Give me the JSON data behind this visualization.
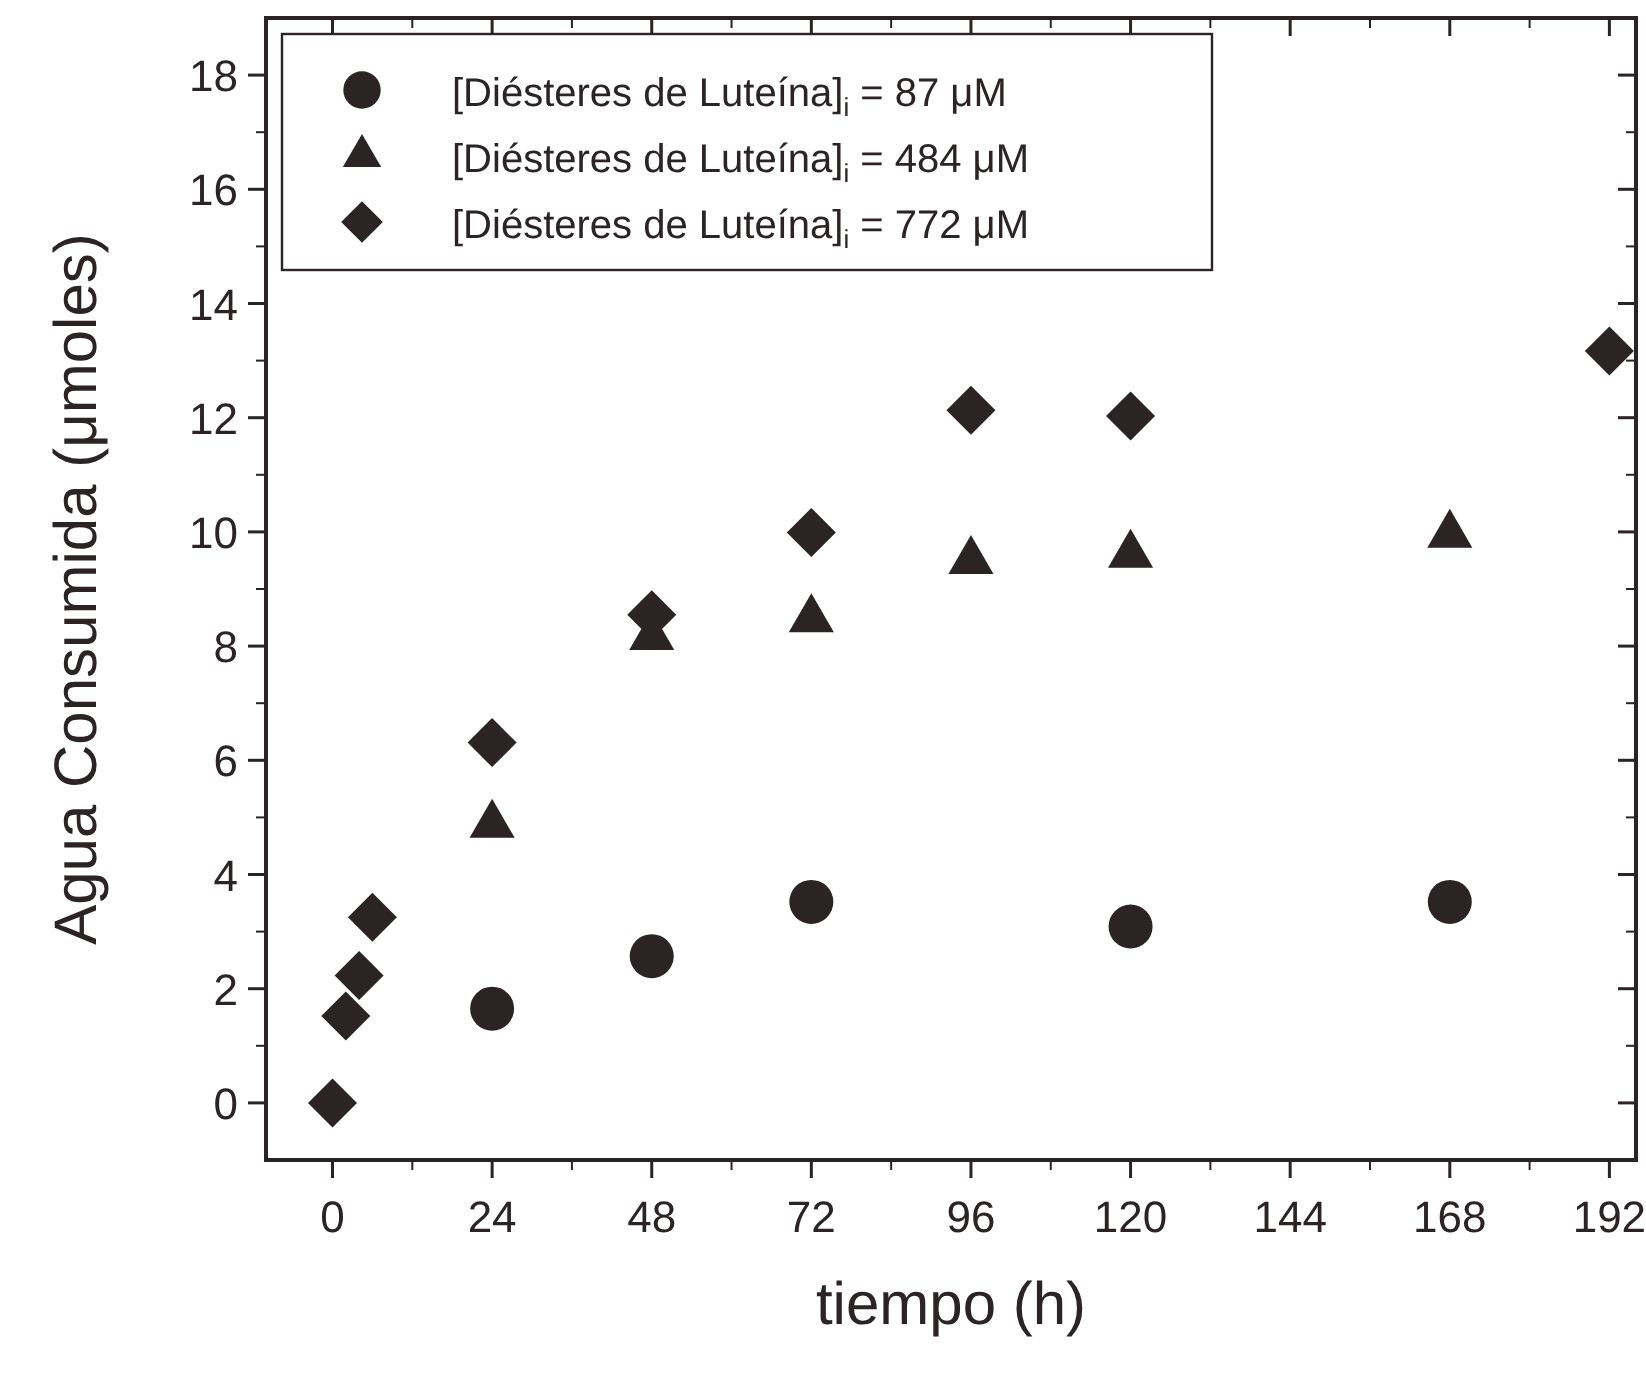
{
  "chart_data": {
    "type": "scatter",
    "xlabel": "tiempo (h)",
    "ylabel": "Agua Consumida (μmoles)",
    "xlim": [
      -10,
      196
    ],
    "ylim": [
      -1,
      19
    ],
    "xticks": [
      0,
      24,
      48,
      72,
      96,
      120,
      144,
      168,
      192
    ],
    "yticks": [
      0,
      2,
      4,
      6,
      8,
      10,
      12,
      14,
      16,
      18
    ],
    "grid": false,
    "legend": "top left",
    "series": [
      {
        "name": "[Diésteres de Luteína]$_{i}$ = 87 μM",
        "color": "#2b2324",
        "marker": "circle",
        "x": [
          24,
          48,
          72,
          120,
          168
        ],
        "values": [
          1.65,
          2.57,
          3.52,
          3.09,
          3.52
        ]
      },
      {
        "name": "[Diésteres de Luteína]$_{i}$ = 484 μM",
        "color": "#2b2324",
        "marker": "triangle",
        "x": [
          24,
          48,
          72,
          96,
          120,
          168
        ],
        "values": [
          4.87,
          8.16,
          8.47,
          9.49,
          9.6,
          9.95
        ]
      },
      {
        "name": "[Diésteres de Luteína]$_{i}$ = 772 μM",
        "color": "#2b2324",
        "marker": "diamond",
        "x": [
          0,
          2,
          4,
          6,
          24,
          48,
          72,
          96,
          120,
          192
        ],
        "values": [
          0,
          1.52,
          2.23,
          3.25,
          6.31,
          8.55,
          9.99,
          12.13,
          12.03,
          13.17
        ]
      }
    ]
  }
}
